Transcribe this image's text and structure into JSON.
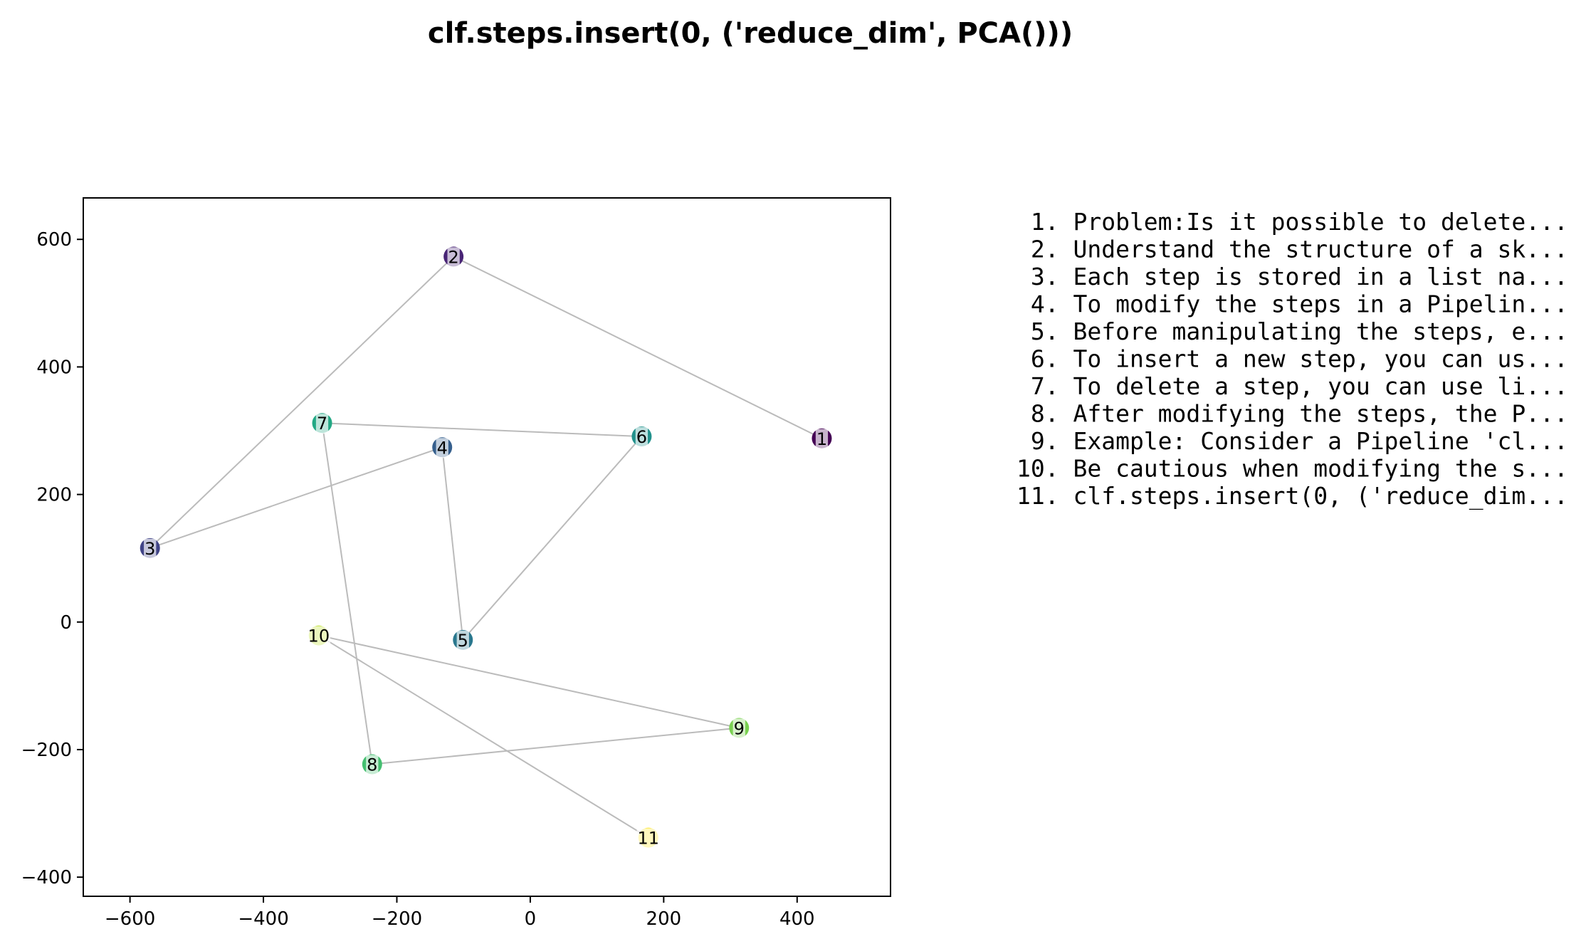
{
  "chart_data": {
    "type": "scatter",
    "title": "clf.steps.insert(0, ('reduce_dim', PCA()))",
    "xlabel": "",
    "ylabel": "",
    "xlim": [
      -670,
      540
    ],
    "ylim": [
      -430,
      665
    ],
    "x_ticks": [
      -600,
      -400,
      -200,
      0,
      200,
      400
    ],
    "y_ticks": [
      -400,
      -200,
      0,
      200,
      400,
      600
    ],
    "grid": false,
    "colormap": "viridis",
    "line_color": "#bbbbbb",
    "points": [
      {
        "label": "1",
        "x": 437,
        "y": 288,
        "color": "#440154"
      },
      {
        "label": "2",
        "x": -115,
        "y": 573,
        "color": "#482475"
      },
      {
        "label": "3",
        "x": -570,
        "y": 116,
        "color": "#414487"
      },
      {
        "label": "4",
        "x": -132,
        "y": 274,
        "color": "#355f8d"
      },
      {
        "label": "5",
        "x": -101,
        "y": -28,
        "color": "#2a788e"
      },
      {
        "label": "6",
        "x": 167,
        "y": 291,
        "color": "#21918c"
      },
      {
        "label": "7",
        "x": -312,
        "y": 312,
        "color": "#22a884"
      },
      {
        "label": "8",
        "x": -237,
        "y": -223,
        "color": "#44bf70"
      },
      {
        "label": "9",
        "x": 313,
        "y": -166,
        "color": "#7ad151"
      },
      {
        "label": "10",
        "x": -317,
        "y": -21,
        "color": "#bddf26"
      },
      {
        "label": "11",
        "x": 177,
        "y": -338,
        "color": "#fde725"
      }
    ]
  },
  "steps_list": [
    " 1. Problem:Is it possible to delete...",
    " 2. Understand the structure of a sk...",
    " 3. Each step is stored in a list na...",
    " 4. To modify the steps in a Pipelin...",
    " 5. Before manipulating the steps, e...",
    " 6. To insert a new step, you can us...",
    " 7. To delete a step, you can use li...",
    " 8. After modifying the steps, the P...",
    " 9. Example: Consider a Pipeline 'cl...",
    "10. Be cautious when modifying the s...",
    "11. clf.steps.insert(0, ('reduce_dim..."
  ]
}
